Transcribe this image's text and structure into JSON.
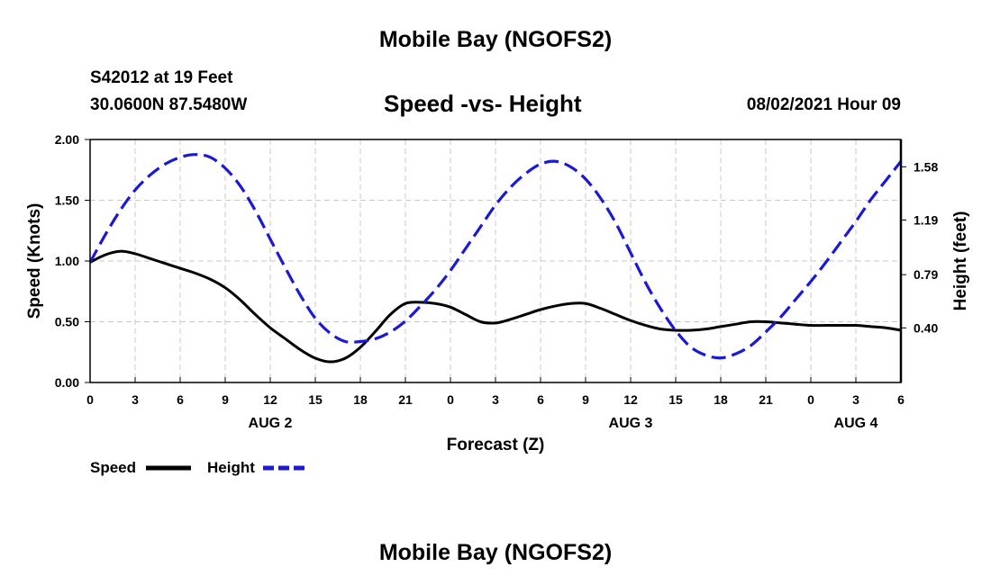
{
  "header": {
    "top_title": "Mobile Bay (NGOFS2)",
    "station": "S42012 at 19 Feet",
    "coords": "30.0600N  87.5480W",
    "datetime": "08/02/2021 Hour 09",
    "bottom_title": "Mobile Bay (NGOFS2)"
  },
  "chart_data": {
    "type": "line",
    "title": "Speed -vs- Height",
    "xlabel": "Forecast (Z)",
    "ylabel": "Speed (Knots)",
    "y2label": "Height (feet)",
    "xlim": [
      0,
      54
    ],
    "ylim": [
      0,
      2.0
    ],
    "y2lim": [
      0,
      1.78
    ],
    "grid": true,
    "x_ticks": [
      {
        "x": 0,
        "label": "0"
      },
      {
        "x": 3,
        "label": "3"
      },
      {
        "x": 6,
        "label": "6"
      },
      {
        "x": 9,
        "label": "9"
      },
      {
        "x": 12,
        "label": "12"
      },
      {
        "x": 15,
        "label": "15"
      },
      {
        "x": 18,
        "label": "18"
      },
      {
        "x": 21,
        "label": "21"
      },
      {
        "x": 24,
        "label": "0"
      },
      {
        "x": 27,
        "label": "3"
      },
      {
        "x": 30,
        "label": "6"
      },
      {
        "x": 33,
        "label": "9"
      },
      {
        "x": 36,
        "label": "12"
      },
      {
        "x": 39,
        "label": "15"
      },
      {
        "x": 42,
        "label": "18"
      },
      {
        "x": 45,
        "label": "21"
      },
      {
        "x": 48,
        "label": "0"
      },
      {
        "x": 51,
        "label": "3"
      },
      {
        "x": 54,
        "label": "6"
      }
    ],
    "date_labels": [
      {
        "x": 12,
        "label": "AUG 2"
      },
      {
        "x": 36,
        "label": "AUG 3"
      },
      {
        "x": 51,
        "label": "AUG 4"
      }
    ],
    "y_ticks": [
      {
        "v": 0.0,
        "label": "0.00"
      },
      {
        "v": 0.5,
        "label": "0.50"
      },
      {
        "v": 1.0,
        "label": "1.00"
      },
      {
        "v": 1.5,
        "label": "1.50"
      },
      {
        "v": 2.0,
        "label": "2.00"
      }
    ],
    "y2_ticks": [
      {
        "v": 0.4,
        "label": "0.40"
      },
      {
        "v": 0.79,
        "label": "0.79"
      },
      {
        "v": 1.19,
        "label": "1.19"
      },
      {
        "v": 1.58,
        "label": "1.58"
      }
    ],
    "legend_position": "bottom-left",
    "series": [
      {
        "name": "Speed",
        "axis": "left",
        "color": "#000000",
        "style": "solid",
        "x": [
          0,
          1,
          2,
          3,
          4,
          5,
          6,
          7,
          8,
          9,
          10,
          11,
          12,
          13,
          14,
          15,
          16,
          17,
          18,
          19,
          20,
          21,
          22,
          23,
          24,
          25,
          26,
          27,
          28,
          29,
          30,
          31,
          32,
          33,
          34,
          35,
          36,
          37,
          38,
          39,
          40,
          41,
          42,
          43,
          44,
          45,
          46,
          47,
          48,
          49,
          50,
          51,
          52,
          53,
          54
        ],
        "values": [
          0.99,
          1.05,
          1.08,
          1.06,
          1.02,
          0.98,
          0.94,
          0.9,
          0.85,
          0.78,
          0.68,
          0.56,
          0.45,
          0.36,
          0.27,
          0.2,
          0.17,
          0.2,
          0.29,
          0.42,
          0.56,
          0.65,
          0.66,
          0.65,
          0.62,
          0.56,
          0.5,
          0.49,
          0.52,
          0.56,
          0.6,
          0.63,
          0.65,
          0.65,
          0.61,
          0.56,
          0.51,
          0.47,
          0.44,
          0.43,
          0.43,
          0.44,
          0.46,
          0.48,
          0.5,
          0.5,
          0.49,
          0.48,
          0.47,
          0.47,
          0.47,
          0.47,
          0.46,
          0.45,
          0.43
        ]
      },
      {
        "name": "Height",
        "axis": "right",
        "color": "#1a1ad6",
        "style": "dashed",
        "x": [
          0,
          1,
          2,
          3,
          4,
          5,
          6,
          7,
          8,
          9,
          10,
          11,
          12,
          13,
          14,
          15,
          16,
          17,
          18,
          19,
          20,
          21,
          22,
          23,
          24,
          25,
          26,
          27,
          28,
          29,
          30,
          31,
          32,
          33,
          34,
          35,
          36,
          37,
          38,
          39,
          40,
          41,
          42,
          43,
          44,
          45,
          46,
          47,
          48,
          49,
          50,
          51,
          52,
          53,
          54
        ],
        "values": [
          0.88,
          1.08,
          1.26,
          1.41,
          1.52,
          1.6,
          1.65,
          1.67,
          1.65,
          1.57,
          1.44,
          1.26,
          1.05,
          0.84,
          0.64,
          0.47,
          0.36,
          0.3,
          0.3,
          0.32,
          0.37,
          0.45,
          0.56,
          0.68,
          0.82,
          0.98,
          1.14,
          1.3,
          1.43,
          1.53,
          1.6,
          1.62,
          1.58,
          1.49,
          1.35,
          1.17,
          0.95,
          0.73,
          0.54,
          0.38,
          0.26,
          0.2,
          0.18,
          0.21,
          0.27,
          0.37,
          0.48,
          0.61,
          0.74,
          0.88,
          1.03,
          1.18,
          1.34,
          1.48,
          1.62
        ]
      }
    ]
  }
}
